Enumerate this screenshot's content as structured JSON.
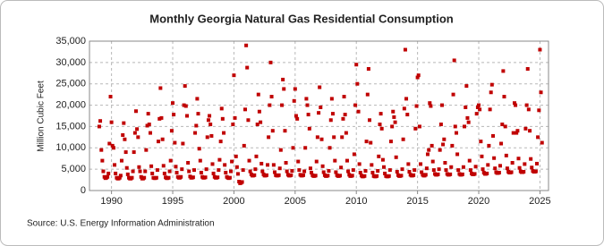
{
  "chart_data": {
    "type": "scatter",
    "title": "Monthly Georgia Natural Gas Residential Consumption",
    "y_label": "Million Cubic Feet",
    "source": "Source: U.S. Energy Information Administration",
    "color": "#c00000",
    "grid": true,
    "xlim": [
      1988.2,
      2025.7
    ],
    "xticks": [
      1990,
      1995,
      2000,
      2005,
      2010,
      2015,
      2020,
      2025
    ],
    "ylim": [
      0,
      35000
    ],
    "yticks": [
      0,
      {
        "value": 5000,
        "label": "5,000"
      },
      {
        "value": 10000,
        "label": "10,000"
      },
      {
        "value": 15000,
        "label": "15,000"
      },
      {
        "value": 20000,
        "label": "20,000"
      },
      {
        "value": 25000,
        "label": "25,000"
      },
      {
        "value": 30000,
        "label": "30,000"
      },
      {
        "value": 35000,
        "label": "35,000"
      }
    ],
    "x": [
      1989,
      1989.08,
      1989.17,
      1989.25,
      1989.33,
      1989.42,
      1989.5,
      1989.58,
      1989.67,
      1989.75,
      1989.83,
      1989.92,
      1990,
      1990.08,
      1990.17,
      1990.25,
      1990.33,
      1990.42,
      1990.5,
      1990.58,
      1990.67,
      1990.75,
      1990.83,
      1990.92,
      1991,
      1991.08,
      1991.17,
      1991.25,
      1991.33,
      1991.42,
      1991.5,
      1991.58,
      1991.67,
      1991.75,
      1991.83,
      1991.92,
      1992,
      1992.08,
      1992.17,
      1992.25,
      1992.33,
      1992.42,
      1992.5,
      1992.58,
      1992.67,
      1992.75,
      1992.83,
      1992.92,
      1993,
      1993.08,
      1993.17,
      1993.25,
      1993.33,
      1993.42,
      1993.5,
      1993.58,
      1993.67,
      1993.75,
      1993.83,
      1993.92,
      1994,
      1994.08,
      1994.17,
      1994.25,
      1994.33,
      1994.42,
      1994.5,
      1994.58,
      1994.67,
      1994.75,
      1994.83,
      1994.92,
      1995,
      1995.08,
      1995.17,
      1995.25,
      1995.33,
      1995.42,
      1995.5,
      1995.58,
      1995.67,
      1995.75,
      1995.83,
      1995.92,
      1996,
      1996.08,
      1996.17,
      1996.25,
      1996.33,
      1996.42,
      1996.5,
      1996.58,
      1996.67,
      1996.75,
      1996.83,
      1996.92,
      1997,
      1997.08,
      1997.17,
      1997.25,
      1997.33,
      1997.42,
      1997.5,
      1997.58,
      1997.67,
      1997.75,
      1997.83,
      1997.92,
      1998,
      1998.08,
      1998.17,
      1998.25,
      1998.33,
      1998.42,
      1998.5,
      1998.58,
      1998.67,
      1998.75,
      1998.83,
      1998.92,
      1999,
      1999.08,
      1999.17,
      1999.25,
      1999.33,
      1999.42,
      1999.5,
      1999.58,
      1999.67,
      1999.75,
      1999.83,
      1999.92,
      2000,
      2000.08,
      2000.17,
      2000.25,
      2000.33,
      2000.42,
      2000.5,
      2000.58,
      2000.67,
      2000.75,
      2000.83,
      2000.92,
      2001,
      2001.08,
      2001.17,
      2001.25,
      2001.33,
      2001.42,
      2001.5,
      2001.58,
      2001.67,
      2001.75,
      2001.83,
      2001.92,
      2002,
      2002.08,
      2002.17,
      2002.25,
      2002.33,
      2002.42,
      2002.5,
      2002.58,
      2002.67,
      2002.75,
      2002.83,
      2002.92,
      2003,
      2003.08,
      2003.17,
      2003.25,
      2003.33,
      2003.42,
      2003.5,
      2003.58,
      2003.67,
      2003.75,
      2003.83,
      2003.92,
      2004,
      2004.08,
      2004.17,
      2004.25,
      2004.33,
      2004.42,
      2004.5,
      2004.58,
      2004.67,
      2004.75,
      2004.83,
      2004.92,
      2005,
      2005.08,
      2005.17,
      2005.25,
      2005.33,
      2005.42,
      2005.5,
      2005.58,
      2005.67,
      2005.75,
      2005.83,
      2005.92,
      2006,
      2006.08,
      2006.17,
      2006.25,
      2006.33,
      2006.42,
      2006.5,
      2006.58,
      2006.67,
      2006.75,
      2006.83,
      2006.92,
      2007,
      2007.08,
      2007.17,
      2007.25,
      2007.33,
      2007.42,
      2007.5,
      2007.58,
      2007.67,
      2007.75,
      2007.83,
      2007.92,
      2008,
      2008.08,
      2008.17,
      2008.25,
      2008.33,
      2008.42,
      2008.5,
      2008.58,
      2008.67,
      2008.75,
      2008.83,
      2008.92,
      2009,
      2009.08,
      2009.17,
      2009.25,
      2009.33,
      2009.42,
      2009.5,
      2009.58,
      2009.67,
      2009.75,
      2009.83,
      2009.92,
      2010,
      2010.08,
      2010.17,
      2010.25,
      2010.33,
      2010.42,
      2010.5,
      2010.58,
      2010.67,
      2010.75,
      2010.83,
      2010.92,
      2011,
      2011.08,
      2011.17,
      2011.25,
      2011.33,
      2011.42,
      2011.5,
      2011.58,
      2011.67,
      2011.75,
      2011.83,
      2011.92,
      2012,
      2012.08,
      2012.17,
      2012.25,
      2012.33,
      2012.42,
      2012.5,
      2012.58,
      2012.67,
      2012.75,
      2012.83,
      2012.92,
      2013,
      2013.08,
      2013.17,
      2013.25,
      2013.33,
      2013.42,
      2013.5,
      2013.58,
      2013.67,
      2013.75,
      2013.83,
      2013.92,
      2014,
      2014.08,
      2014.17,
      2014.25,
      2014.33,
      2014.42,
      2014.5,
      2014.58,
      2014.67,
      2014.75,
      2014.83,
      2014.92,
      2015,
      2015.08,
      2015.17,
      2015.25,
      2015.33,
      2015.42,
      2015.5,
      2015.58,
      2015.67,
      2015.75,
      2015.83,
      2015.92,
      2016,
      2016.08,
      2016.17,
      2016.25,
      2016.33,
      2016.42,
      2016.5,
      2016.58,
      2016.67,
      2016.75,
      2016.83,
      2016.92,
      2017,
      2017.08,
      2017.17,
      2017.25,
      2017.33,
      2017.42,
      2017.5,
      2017.58,
      2017.67,
      2017.75,
      2017.83,
      2017.92,
      2018,
      2018.08,
      2018.17,
      2018.25,
      2018.33,
      2018.42,
      2018.5,
      2018.58,
      2018.67,
      2018.75,
      2018.83,
      2018.92,
      2019,
      2019.08,
      2019.17,
      2019.25,
      2019.33,
      2019.42,
      2019.5,
      2019.58,
      2019.67,
      2019.75,
      2019.83,
      2019.92,
      2020,
      2020.08,
      2020.17,
      2020.25,
      2020.33,
      2020.42,
      2020.5,
      2020.58,
      2020.67,
      2020.75,
      2020.83,
      2020.92,
      2021,
      2021.08,
      2021.17,
      2021.25,
      2021.33,
      2021.42,
      2021.5,
      2021.58,
      2021.67,
      2021.75,
      2021.83,
      2021.92,
      2022,
      2022.08,
      2022.17,
      2022.25,
      2022.33,
      2022.42,
      2022.5,
      2022.58,
      2022.67,
      2022.75,
      2022.83,
      2022.92,
      2023,
      2023.08,
      2023.17,
      2023.25,
      2023.33,
      2023.42,
      2023.5,
      2023.58,
      2023.67,
      2023.75,
      2023.83,
      2023.92,
      2024,
      2024.08,
      2024.17,
      2024.25,
      2024.33,
      2024.42,
      2024.5,
      2024.58,
      2024.67,
      2024.75,
      2024.83,
      2024.92,
      2025,
      2025.08,
      2025.17
    ],
    "values": [
      15000,
      16300,
      9500,
      7000,
      4500,
      3200,
      2900,
      3000,
      3200,
      4000,
      11000,
      22000,
      16000,
      10500,
      10000,
      6000,
      4000,
      3000,
      2800,
      2800,
      3000,
      3500,
      7000,
      13000,
      15800,
      12000,
      9000,
      5300,
      3800,
      3000,
      2800,
      2800,
      3000,
      4500,
      9000,
      13500,
      18600,
      14400,
      12500,
      5500,
      4500,
      3200,
      2800,
      2800,
      3000,
      4500,
      9500,
      15200,
      18000,
      15500,
      13500,
      5700,
      4000,
      3000,
      2900,
      2900,
      3000,
      4800,
      11500,
      16800,
      24000,
      17000,
      12000,
      5800,
      4000,
      3100,
      2900,
      2900,
      3000,
      4500,
      7000,
      14000,
      20500,
      17800,
      11200,
      5600,
      4200,
      3200,
      3000,
      3000,
      3200,
      5000,
      11000,
      20000,
      24500,
      19800,
      17500,
      6500,
      4500,
      3300,
      3000,
      3000,
      3100,
      4800,
      13500,
      15200,
      21500,
      18000,
      9800,
      7000,
      4200,
      3200,
      3000,
      3000,
      3100,
      5000,
      12500,
      16500,
      17500,
      15500,
      12800,
      6200,
      4000,
      3200,
      3000,
      3000,
      3100,
      4800,
      7200,
      11500,
      19200,
      16800,
      13500,
      6000,
      4200,
      3200,
      3000,
      2900,
      3000,
      4500,
      6800,
      15500,
      27000,
      17000,
      8000,
      5500,
      3900,
      2100,
      1700,
      1800,
      2000,
      4800,
      10500,
      19000,
      34000,
      28800,
      16500,
      7000,
      4500,
      3800,
      3500,
      3500,
      3600,
      5000,
      8000,
      15500,
      22500,
      18500,
      16000,
      6300,
      4500,
      3800,
      3500,
      3500,
      3600,
      6000,
      12500,
      20000,
      30000,
      22000,
      14000,
      6000,
      4300,
      3600,
      3500,
      3500,
      3600,
      5200,
      9500,
      20000,
      26000,
      23800,
      14000,
      6500,
      4500,
      3700,
      3500,
      3500,
      3600,
      4600,
      10000,
      21000,
      23800,
      17500,
      16800,
      6800,
      4800,
      3700,
      3500,
      3500,
      3600,
      4500,
      10000,
      21500,
      20000,
      17800,
      14500,
      5200,
      4200,
      3600,
      3400,
      3400,
      3500,
      6800,
      12500,
      18200,
      24200,
      19500,
      12000,
      5700,
      4300,
      3600,
      3400,
      3400,
      3500,
      4600,
      10000,
      16500,
      21500,
      18000,
      12500,
      7000,
      4300,
      3600,
      3400,
      3400,
      3500,
      5400,
      12500,
      16800,
      22000,
      17800,
      13500,
      7000,
      4500,
      3700,
      3400,
      3400,
      3500,
      4800,
      8500,
      20000,
      29500,
      25000,
      18500,
      6200,
      4200,
      3500,
      3300,
      3300,
      3400,
      4600,
      11500,
      22500,
      28500,
      16500,
      11200,
      6000,
      4200,
      3400,
      3300,
      3300,
      3400,
      4600,
      8000,
      15500,
      18000,
      14500,
      7200,
      5500,
      4000,
      3400,
      3300,
      3300,
      3400,
      4800,
      11500,
      15000,
      18500,
      17200,
      16000,
      7800,
      4400,
      3600,
      3400,
      3400,
      3500,
      5000,
      12000,
      19200,
      33000,
      21500,
      17800,
      6200,
      4400,
      3700,
      3500,
      3500,
      3600,
      4800,
      14500,
      19800,
      26500,
      27000,
      15000,
      6200,
      4300,
      3700,
      3500,
      3500,
      3700,
      5200,
      8500,
      9500,
      20500,
      19800,
      10500,
      6800,
      4800,
      3900,
      3700,
      3700,
      3800,
      5000,
      9500,
      15500,
      20000,
      10800,
      12000,
      6500,
      4800,
      3900,
      3700,
      3700,
      3800,
      5500,
      10500,
      22500,
      30500,
      15000,
      13500,
      8500,
      4800,
      3900,
      3700,
      3700,
      3800,
      5500,
      15000,
      19500,
      24500,
      17000,
      16000,
      7000,
      4800,
      4000,
      3800,
      3800,
      3900,
      5600,
      18000,
      19500,
      20000,
      19000,
      11500,
      8000,
      5000,
      4200,
      3900,
      3900,
      4000,
      6000,
      10500,
      19000,
      23000,
      24800,
      12800,
      7600,
      5200,
      4300,
      4100,
      4100,
      4200,
      5800,
      11000,
      15500,
      28000,
      22000,
      15000,
      8200,
      5200,
      4400,
      4200,
      4200,
      4300,
      6500,
      13500,
      20500,
      20000,
      13500,
      14000,
      7500,
      5300,
      4500,
      4300,
      4300,
      4400,
      6200,
      14500,
      20000,
      28500,
      19000,
      14000,
      7400,
      5400,
      4600,
      4400,
      4400,
      4500,
      6300,
      12500,
      18800,
      33000,
      23000,
      11200
    ]
  }
}
